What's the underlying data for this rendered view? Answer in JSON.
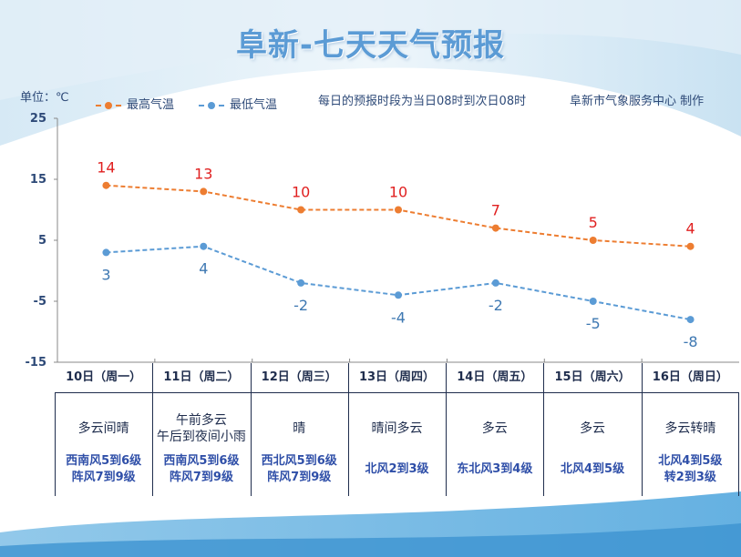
{
  "title": "阜新-七天天气预报",
  "unit_label": "单位：℃",
  "note": "每日的预报时段为当日08时到次日08时",
  "source": "阜新市气象服务中心 制作",
  "colors": {
    "high": "#ed7d31",
    "low": "#5b9bd5",
    "high_label": "#e02020",
    "low_label": "#3e78b2",
    "title": "#5b9bd5"
  },
  "days": [
    {
      "date": "10日（周一）",
      "weather": [
        "多云间晴"
      ],
      "wind": [
        "西南风5到6级",
        "阵风7到9级"
      ]
    },
    {
      "date": "11日（周二）",
      "weather": [
        "午前多云",
        "午后到夜间小雨"
      ],
      "wind": [
        "西南风5到6级",
        "阵风7到9级"
      ]
    },
    {
      "date": "12日（周三）",
      "weather": [
        "晴"
      ],
      "wind": [
        "西北风5到6级",
        "阵风7到9级"
      ]
    },
    {
      "date": "13日（周四）",
      "weather": [
        "晴间多云"
      ],
      "wind": [
        "北风2到3级"
      ]
    },
    {
      "date": "14日（周五）",
      "weather": [
        "多云"
      ],
      "wind": [
        "东北风3到4级"
      ]
    },
    {
      "date": "15日（周六）",
      "weather": [
        "多云"
      ],
      "wind": [
        "北风4到5级"
      ]
    },
    {
      "date": "16日（周日）",
      "weather": [
        "多云转晴"
      ],
      "wind": [
        "北风4到5级",
        "转2到3级"
      ]
    }
  ],
  "chart_data": {
    "type": "line",
    "categories": [
      "10日（周一）",
      "11日（周二）",
      "12日（周三）",
      "13日（周四）",
      "14日（周五）",
      "15日（周六）",
      "16日（周日）"
    ],
    "series": [
      {
        "name": "最高气温",
        "values": [
          14,
          13,
          10,
          10,
          7,
          5,
          4
        ]
      },
      {
        "name": "最低气温",
        "values": [
          3,
          4,
          -2,
          -4,
          -2,
          -5,
          -8
        ]
      }
    ],
    "ylabel": "单位：℃",
    "ylim": [
      -15,
      25
    ],
    "yticks": [
      25,
      15,
      5,
      -5,
      -15
    ],
    "grid": false,
    "legend": "top-left"
  }
}
